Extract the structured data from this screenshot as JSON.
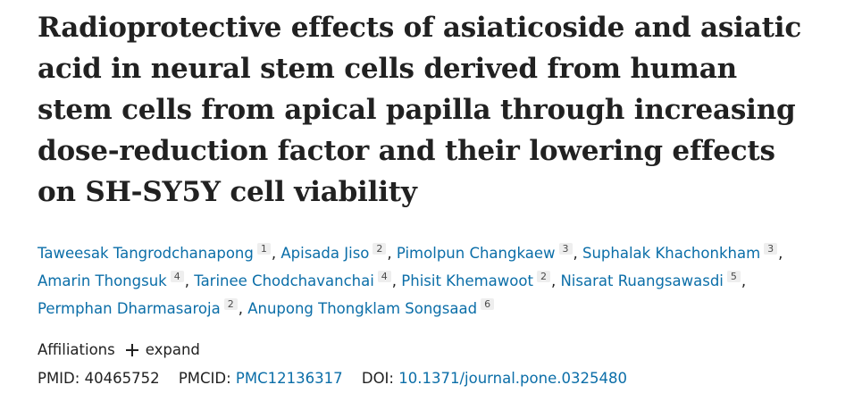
{
  "article": {
    "title": "Radioprotective effects of asiaticoside and asiatic acid in neural stem cells derived from human stem cells from apical papilla through increasing dose-reduction factor and their lowering effects on SH-SY5Y cell viability",
    "authors": [
      {
        "name": "Taweesak Tangrodchanapong",
        "aff": "1"
      },
      {
        "name": "Apisada Jiso",
        "aff": "2"
      },
      {
        "name": "Pimolpun Changkaew",
        "aff": "3"
      },
      {
        "name": "Suphalak Khachonkham",
        "aff": "3"
      },
      {
        "name": "Amarin Thongsuk",
        "aff": "4"
      },
      {
        "name": "Tarinee Chodchavanchai",
        "aff": "4"
      },
      {
        "name": "Phisit Khemawoot",
        "aff": "2"
      },
      {
        "name": "Nisarat Ruangsawasdi",
        "aff": "5"
      },
      {
        "name": "Permphan Dharmasaroja",
        "aff": "2"
      },
      {
        "name": "Anupong Thongklam Songsaad",
        "aff": "6"
      }
    ],
    "affiliations": {
      "label": "Affiliations",
      "expand_label": "expand"
    },
    "identifiers": {
      "pmid_label": "PMID:",
      "pmid": "40465752",
      "pmcid_label": "PMCID:",
      "pmcid": "PMC12136317",
      "doi_label": "DOI:",
      "doi": "10.1371/journal.pone.0325480"
    }
  },
  "colors": {
    "link": "#0b6ea8",
    "text": "#212121",
    "sup_bg": "#eeeeee"
  }
}
